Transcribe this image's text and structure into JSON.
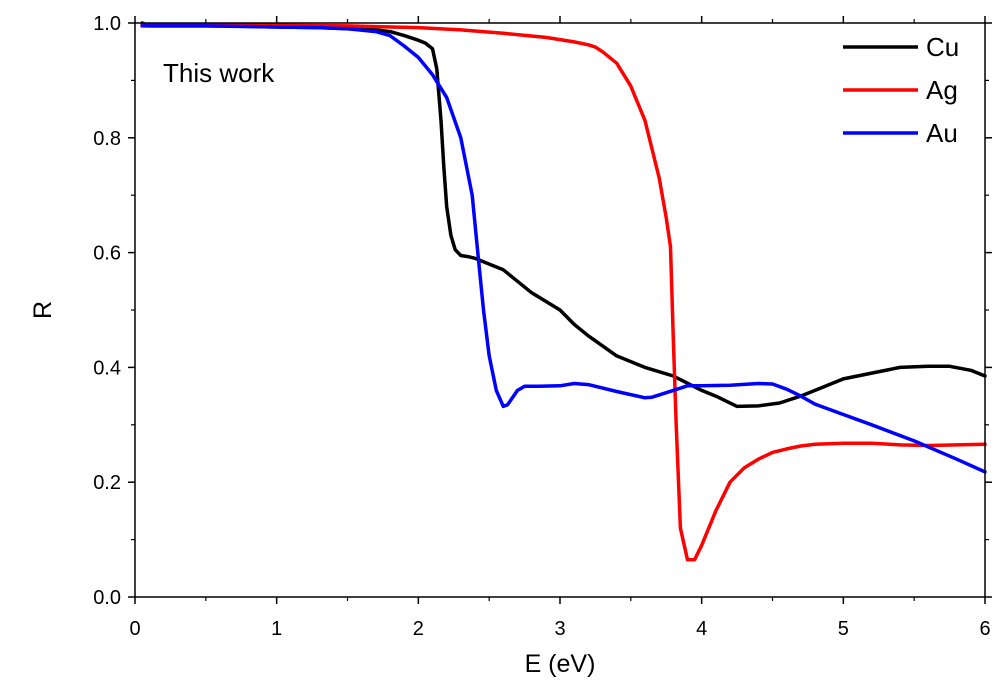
{
  "chart_data": {
    "type": "line",
    "xlabel": "E (eV)",
    "ylabel": "R",
    "xlim": [
      0,
      6
    ],
    "ylim": [
      0,
      1
    ],
    "xticks": [
      "0",
      "1",
      "2",
      "3",
      "4",
      "5",
      "6"
    ],
    "yticks": [
      "0.0",
      "0.2",
      "0.4",
      "0.6",
      "0.8",
      "1.0"
    ],
    "annotation": "This work",
    "legend_position": "top-right",
    "grid": false,
    "series": [
      {
        "name": "Cu",
        "color": "#000000",
        "points": [
          [
            0.05,
            1.0
          ],
          [
            0.1,
            0.995
          ],
          [
            0.3,
            0.995
          ],
          [
            0.5,
            0.995
          ],
          [
            0.8,
            0.994
          ],
          [
            1.0,
            0.993
          ],
          [
            1.3,
            0.992
          ],
          [
            1.5,
            0.99
          ],
          [
            1.7,
            0.988
          ],
          [
            1.8,
            0.985
          ],
          [
            1.9,
            0.978
          ],
          [
            2.0,
            0.97
          ],
          [
            2.05,
            0.965
          ],
          [
            2.1,
            0.955
          ],
          [
            2.13,
            0.92
          ],
          [
            2.16,
            0.83
          ],
          [
            2.18,
            0.75
          ],
          [
            2.2,
            0.68
          ],
          [
            2.23,
            0.63
          ],
          [
            2.26,
            0.605
          ],
          [
            2.3,
            0.595
          ],
          [
            2.35,
            0.593
          ],
          [
            2.4,
            0.59
          ],
          [
            2.5,
            0.58
          ],
          [
            2.6,
            0.57
          ],
          [
            2.7,
            0.55
          ],
          [
            2.8,
            0.53
          ],
          [
            3.0,
            0.5
          ],
          [
            3.1,
            0.475
          ],
          [
            3.2,
            0.455
          ],
          [
            3.4,
            0.42
          ],
          [
            3.6,
            0.4
          ],
          [
            3.8,
            0.385
          ],
          [
            4.0,
            0.36
          ],
          [
            4.1,
            0.35
          ],
          [
            4.25,
            0.332
          ],
          [
            4.4,
            0.333
          ],
          [
            4.55,
            0.338
          ],
          [
            4.7,
            0.35
          ],
          [
            4.85,
            0.365
          ],
          [
            5.0,
            0.38
          ],
          [
            5.2,
            0.39
          ],
          [
            5.4,
            0.4
          ],
          [
            5.6,
            0.402
          ],
          [
            5.75,
            0.402
          ],
          [
            5.9,
            0.395
          ],
          [
            6.0,
            0.385
          ]
        ]
      },
      {
        "name": "Ag",
        "color": "#ff0000",
        "points": [
          [
            0.05,
            0.997
          ],
          [
            0.5,
            0.997
          ],
          [
            1.0,
            0.996
          ],
          [
            1.5,
            0.995
          ],
          [
            2.0,
            0.992
          ],
          [
            2.3,
            0.988
          ],
          [
            2.6,
            0.982
          ],
          [
            2.9,
            0.975
          ],
          [
            3.1,
            0.967
          ],
          [
            3.2,
            0.962
          ],
          [
            3.25,
            0.958
          ],
          [
            3.3,
            0.95
          ],
          [
            3.4,
            0.93
          ],
          [
            3.5,
            0.89
          ],
          [
            3.6,
            0.83
          ],
          [
            3.7,
            0.73
          ],
          [
            3.75,
            0.66
          ],
          [
            3.78,
            0.61
          ],
          [
            3.8,
            0.45
          ],
          [
            3.82,
            0.3
          ],
          [
            3.85,
            0.12
          ],
          [
            3.9,
            0.065
          ],
          [
            3.95,
            0.065
          ],
          [
            4.0,
            0.09
          ],
          [
            4.1,
            0.15
          ],
          [
            4.2,
            0.2
          ],
          [
            4.3,
            0.225
          ],
          [
            4.4,
            0.24
          ],
          [
            4.5,
            0.252
          ],
          [
            4.6,
            0.258
          ],
          [
            4.7,
            0.263
          ],
          [
            4.8,
            0.266
          ],
          [
            5.0,
            0.268
          ],
          [
            5.2,
            0.268
          ],
          [
            5.4,
            0.265
          ],
          [
            5.6,
            0.264
          ],
          [
            5.8,
            0.265
          ],
          [
            6.0,
            0.266
          ]
        ]
      },
      {
        "name": "Au",
        "color": "#0000ff",
        "points": [
          [
            0.05,
            0.995
          ],
          [
            0.3,
            0.995
          ],
          [
            0.5,
            0.995
          ],
          [
            1.0,
            0.993
          ],
          [
            1.3,
            0.992
          ],
          [
            1.5,
            0.99
          ],
          [
            1.7,
            0.985
          ],
          [
            1.8,
            0.978
          ],
          [
            1.9,
            0.96
          ],
          [
            2.0,
            0.94
          ],
          [
            2.1,
            0.91
          ],
          [
            2.2,
            0.87
          ],
          [
            2.3,
            0.8
          ],
          [
            2.38,
            0.7
          ],
          [
            2.42,
            0.6
          ],
          [
            2.46,
            0.5
          ],
          [
            2.5,
            0.42
          ],
          [
            2.55,
            0.36
          ],
          [
            2.6,
            0.332
          ],
          [
            2.63,
            0.335
          ],
          [
            2.7,
            0.36
          ],
          [
            2.75,
            0.367
          ],
          [
            2.85,
            0.367
          ],
          [
            3.0,
            0.368
          ],
          [
            3.1,
            0.372
          ],
          [
            3.2,
            0.37
          ],
          [
            3.4,
            0.358
          ],
          [
            3.6,
            0.347
          ],
          [
            3.65,
            0.348
          ],
          [
            3.8,
            0.36
          ],
          [
            3.9,
            0.368
          ],
          [
            4.0,
            0.368
          ],
          [
            4.2,
            0.369
          ],
          [
            4.4,
            0.372
          ],
          [
            4.5,
            0.371
          ],
          [
            4.6,
            0.362
          ],
          [
            4.7,
            0.35
          ],
          [
            4.8,
            0.336
          ],
          [
            5.0,
            0.318
          ],
          [
            5.2,
            0.3
          ],
          [
            5.5,
            0.272
          ],
          [
            5.8,
            0.24
          ],
          [
            6.0,
            0.218
          ]
        ]
      }
    ]
  }
}
